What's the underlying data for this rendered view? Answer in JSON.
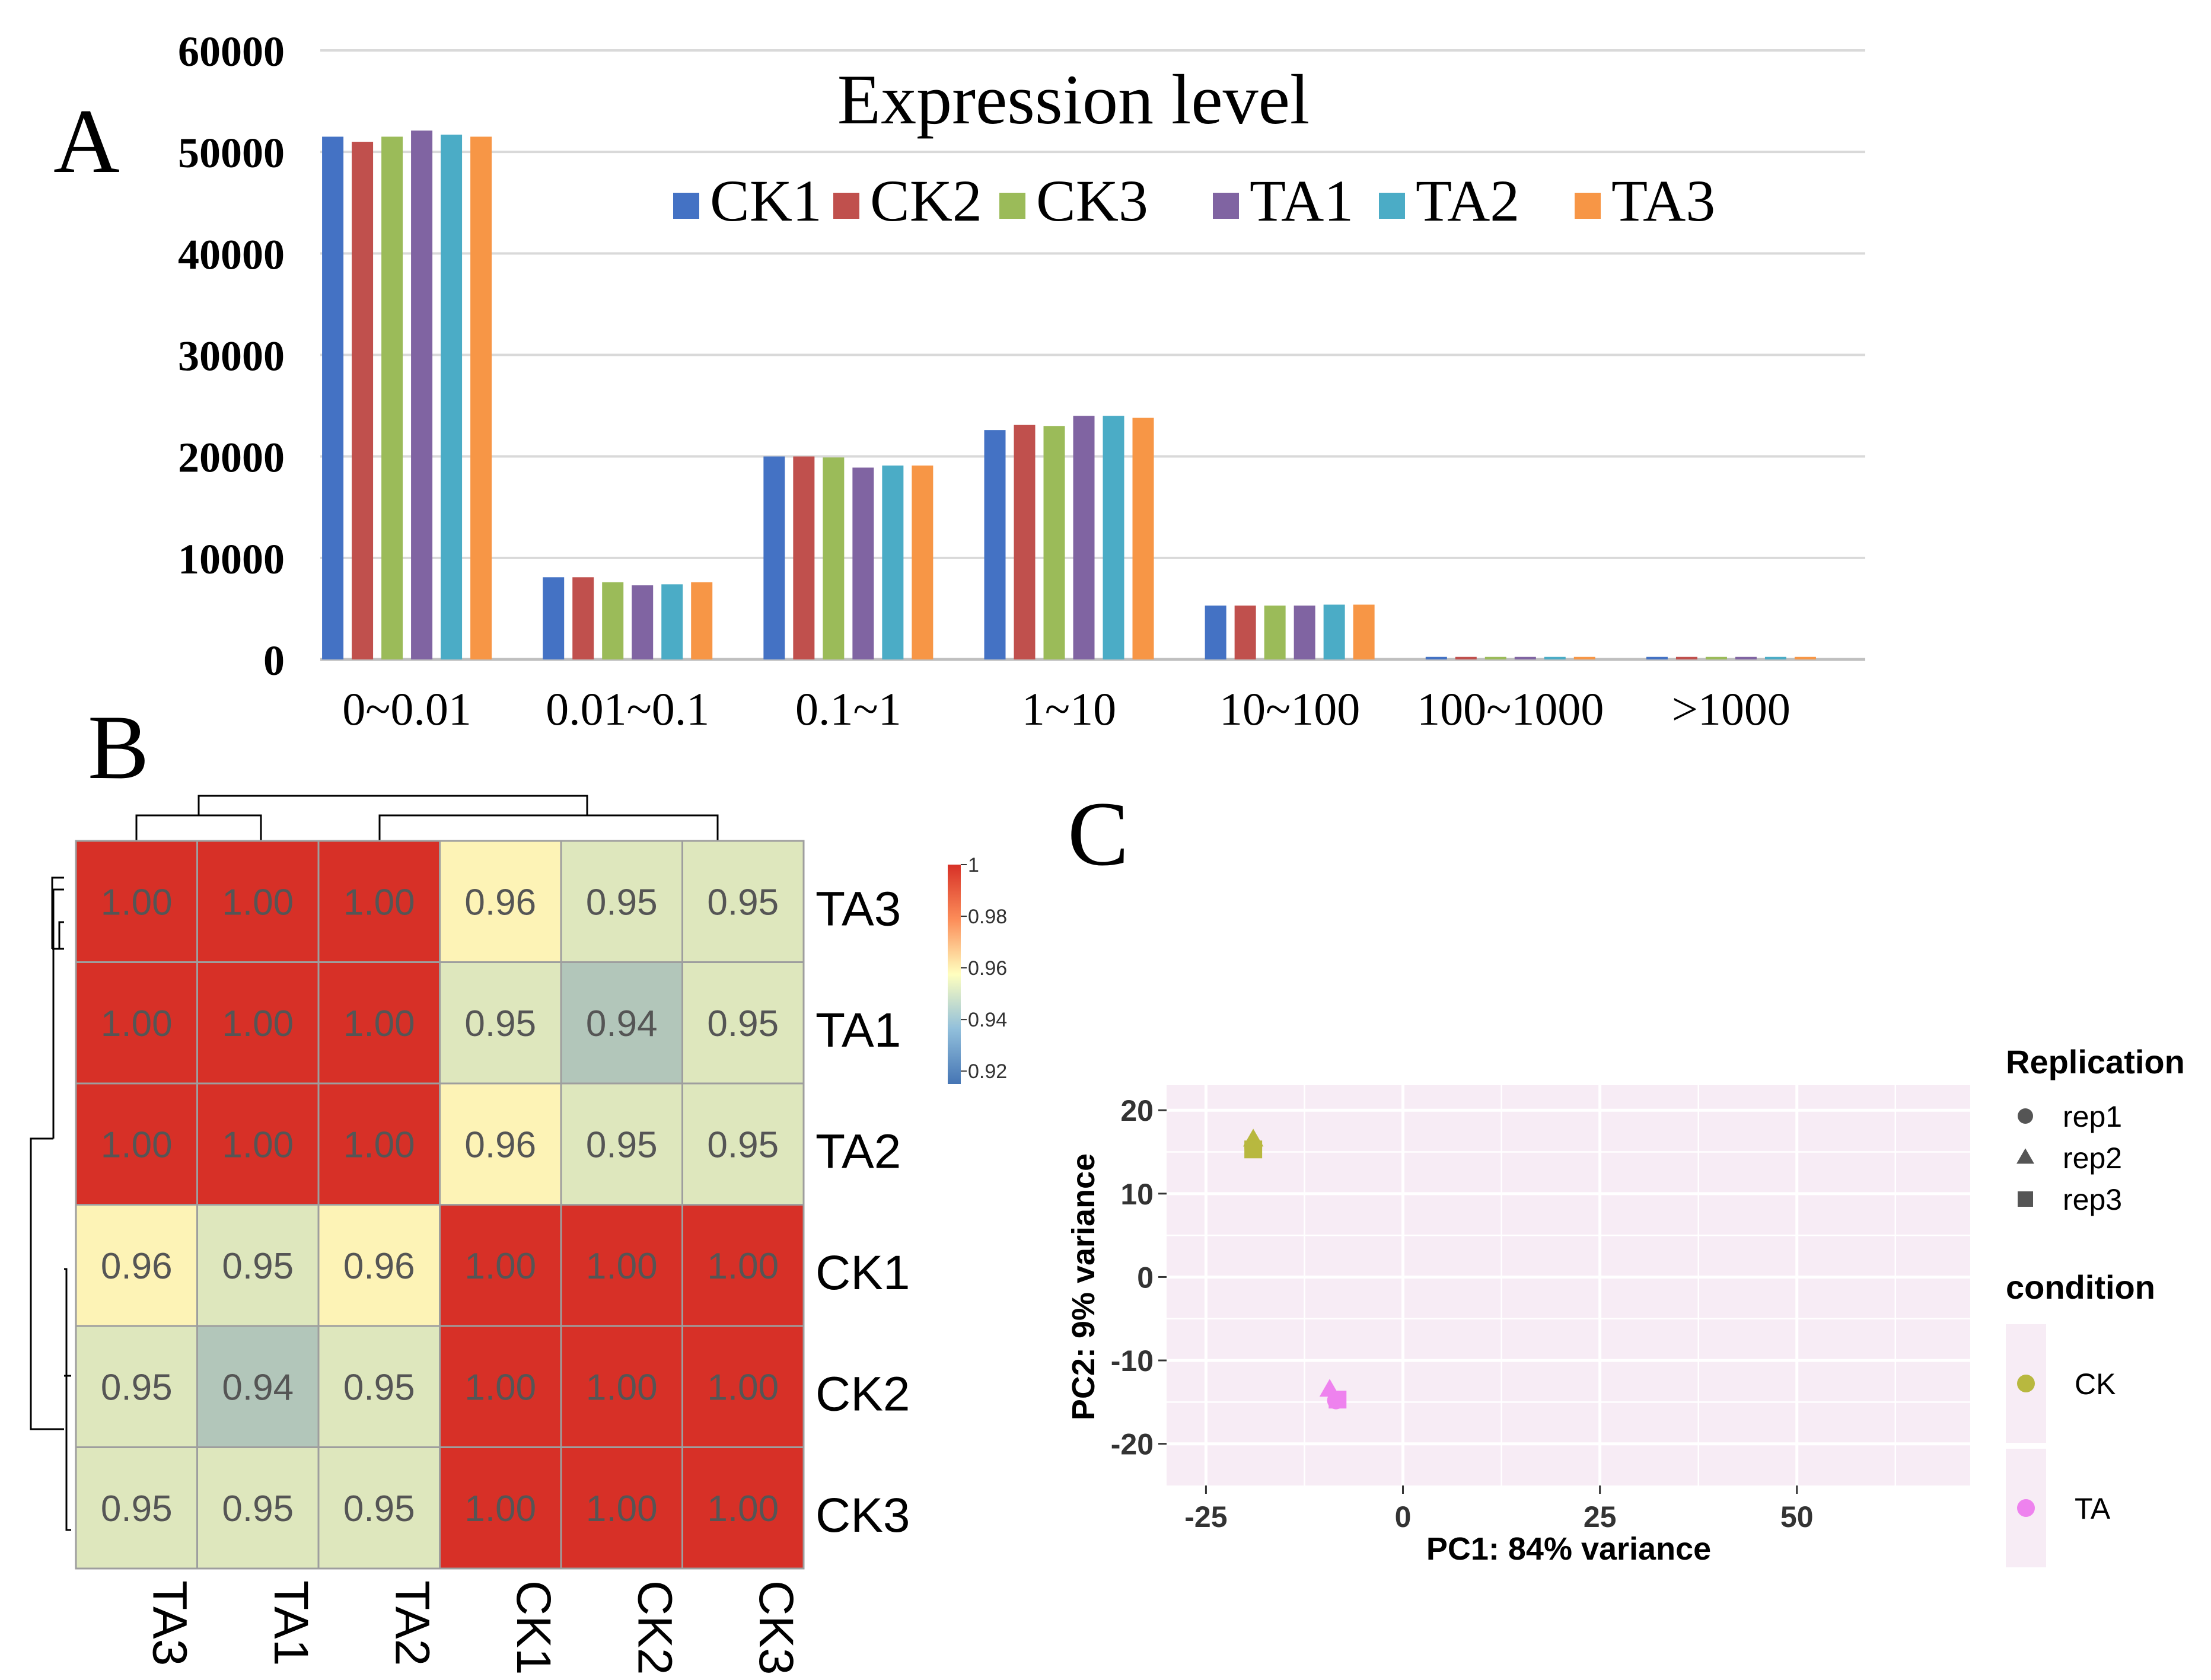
{
  "panel_labels": {
    "a": "A",
    "b": "B",
    "c": "C"
  },
  "chart_data": [
    {
      "type": "bar",
      "title": "Expression level",
      "categories": [
        "0~0.01",
        "0.01~0.1",
        "0.1~1",
        "1~10",
        "10~100",
        "100~1000",
        ">1000"
      ],
      "series": [
        {
          "name": "CK1",
          "color": "#4472C4",
          "values": [
            51500,
            8100,
            20000,
            22600,
            5300,
            250,
            250
          ]
        },
        {
          "name": "CK2",
          "color": "#C0504D",
          "values": [
            51000,
            8100,
            20000,
            23100,
            5300,
            250,
            250
          ]
        },
        {
          "name": "CK3",
          "color": "#9BBB59",
          "values": [
            51500,
            7600,
            19900,
            23000,
            5300,
            250,
            250
          ]
        },
        {
          "name": "TA1",
          "color": "#8064A2",
          "values": [
            52100,
            7300,
            18900,
            24000,
            5300,
            250,
            250
          ]
        },
        {
          "name": "TA2",
          "color": "#4BACC6",
          "values": [
            51700,
            7400,
            19100,
            24000,
            5400,
            250,
            250
          ]
        },
        {
          "name": "TA3",
          "color": "#F79646",
          "values": [
            51500,
            7600,
            19100,
            23800,
            5400,
            250,
            250
          ]
        }
      ],
      "ylim": [
        0,
        60000
      ],
      "yticks": [
        "0",
        "10000",
        "20000",
        "30000",
        "40000",
        "50000",
        "60000"
      ],
      "legend": "top",
      "grid": true
    },
    {
      "type": "heatmap",
      "row_labels": [
        "TA3",
        "TA1",
        "TA2",
        "CK1",
        "CK2",
        "CK3"
      ],
      "col_labels": [
        "TA3",
        "TA1",
        "TA2",
        "CK1",
        "CK2",
        "CK3"
      ],
      "values": [
        [
          1.0,
          1.0,
          1.0,
          0.96,
          0.95,
          0.95
        ],
        [
          1.0,
          1.0,
          1.0,
          0.95,
          0.94,
          0.95
        ],
        [
          1.0,
          1.0,
          1.0,
          0.96,
          0.95,
          0.95
        ],
        [
          0.96,
          0.95,
          0.96,
          1.0,
          1.0,
          1.0
        ],
        [
          0.95,
          0.94,
          0.95,
          1.0,
          1.0,
          1.0
        ],
        [
          0.95,
          0.95,
          0.95,
          1.0,
          1.0,
          1.0
        ]
      ],
      "colorbar": {
        "min": 0.915,
        "max": 1.0,
        "ticks": [
          {
            "value": 1.0,
            "label": "1"
          },
          {
            "value": 0.98,
            "label": "0.98"
          },
          {
            "value": 0.96,
            "label": "0.96"
          },
          {
            "value": 0.94,
            "label": "0.94"
          },
          {
            "value": 0.92,
            "label": "0.92"
          }
        ]
      },
      "colors": {
        "low": "#4575B4",
        "mid": "#FFFFBF",
        "high": "#D73027"
      },
      "dendrogram": "rows and columns, clustering TA vs CK"
    },
    {
      "type": "scatter",
      "xlabel": "PC1: 84% variance",
      "ylabel": "PC2: 9% variance",
      "xlim": [
        -30,
        72
      ],
      "ylim": [
        -25,
        23
      ],
      "xticks": [
        -25,
        0,
        25,
        50
      ],
      "yticks": [
        20,
        10,
        0,
        -10,
        -20
      ],
      "points": [
        {
          "condition": "CK",
          "replication": "rep1",
          "x": -19,
          "y": 15.5
        },
        {
          "condition": "CK",
          "replication": "rep2",
          "x": -19,
          "y": 16.5
        },
        {
          "condition": "CK",
          "replication": "rep3",
          "x": -19,
          "y": 15.3
        },
        {
          "condition": "TA",
          "replication": "rep1",
          "x": -8.5,
          "y": -14.8
        },
        {
          "condition": "TA",
          "replication": "rep2",
          "x": -9.3,
          "y": -13.5
        },
        {
          "condition": "TA",
          "replication": "rep3",
          "x": -8.3,
          "y": -14.7
        }
      ],
      "legend": {
        "replication_title": "Replication",
        "replication": [
          {
            "label": "rep1",
            "shape": "circle"
          },
          {
            "label": "rep2",
            "shape": "triangle"
          },
          {
            "label": "rep3",
            "shape": "square"
          }
        ],
        "condition_title": "condition",
        "condition": [
          {
            "label": "CK",
            "color": "#B8B83F"
          },
          {
            "label": "TA",
            "color": "#EE82EE"
          }
        ]
      }
    }
  ]
}
